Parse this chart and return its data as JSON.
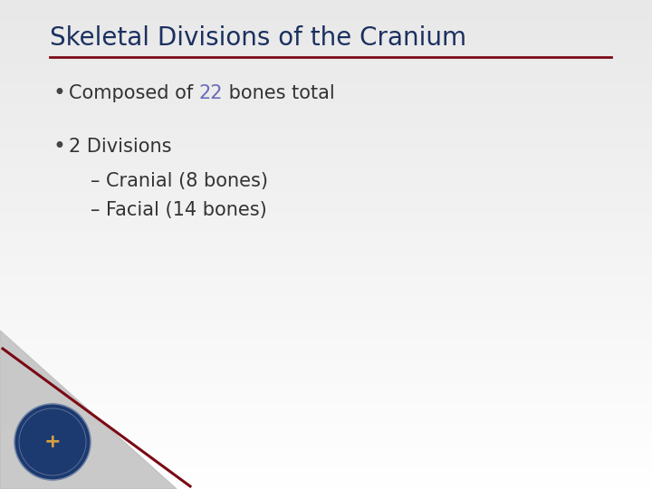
{
  "title": "Skeletal Divisions of the Cranium",
  "title_color": "#1c3060",
  "title_fontsize": 20,
  "separator_color": "#7a0a14",
  "bullet1_pre": "Composed of ",
  "bullet1_num": "22",
  "bullet1_post": " bones total",
  "bullet1_main_color": "#333333",
  "bullet1_num_color": "#6b6bbb",
  "bullet2_text": "2 Divisions",
  "bullet2_color": "#333333",
  "sub1_text": "– Cranial (8 bones)",
  "sub2_text": "– Facial (14 bones)",
  "sub_color": "#333333",
  "body_fontsize": 15,
  "sub_fontsize": 15,
  "bg_gray": 0.88,
  "footer_gray_color": "#b0b0b0",
  "footer_red_color": "#7a0a14",
  "badge_color": "#1c3a70",
  "fig_width": 7.2,
  "fig_height": 5.4,
  "dpi": 100
}
